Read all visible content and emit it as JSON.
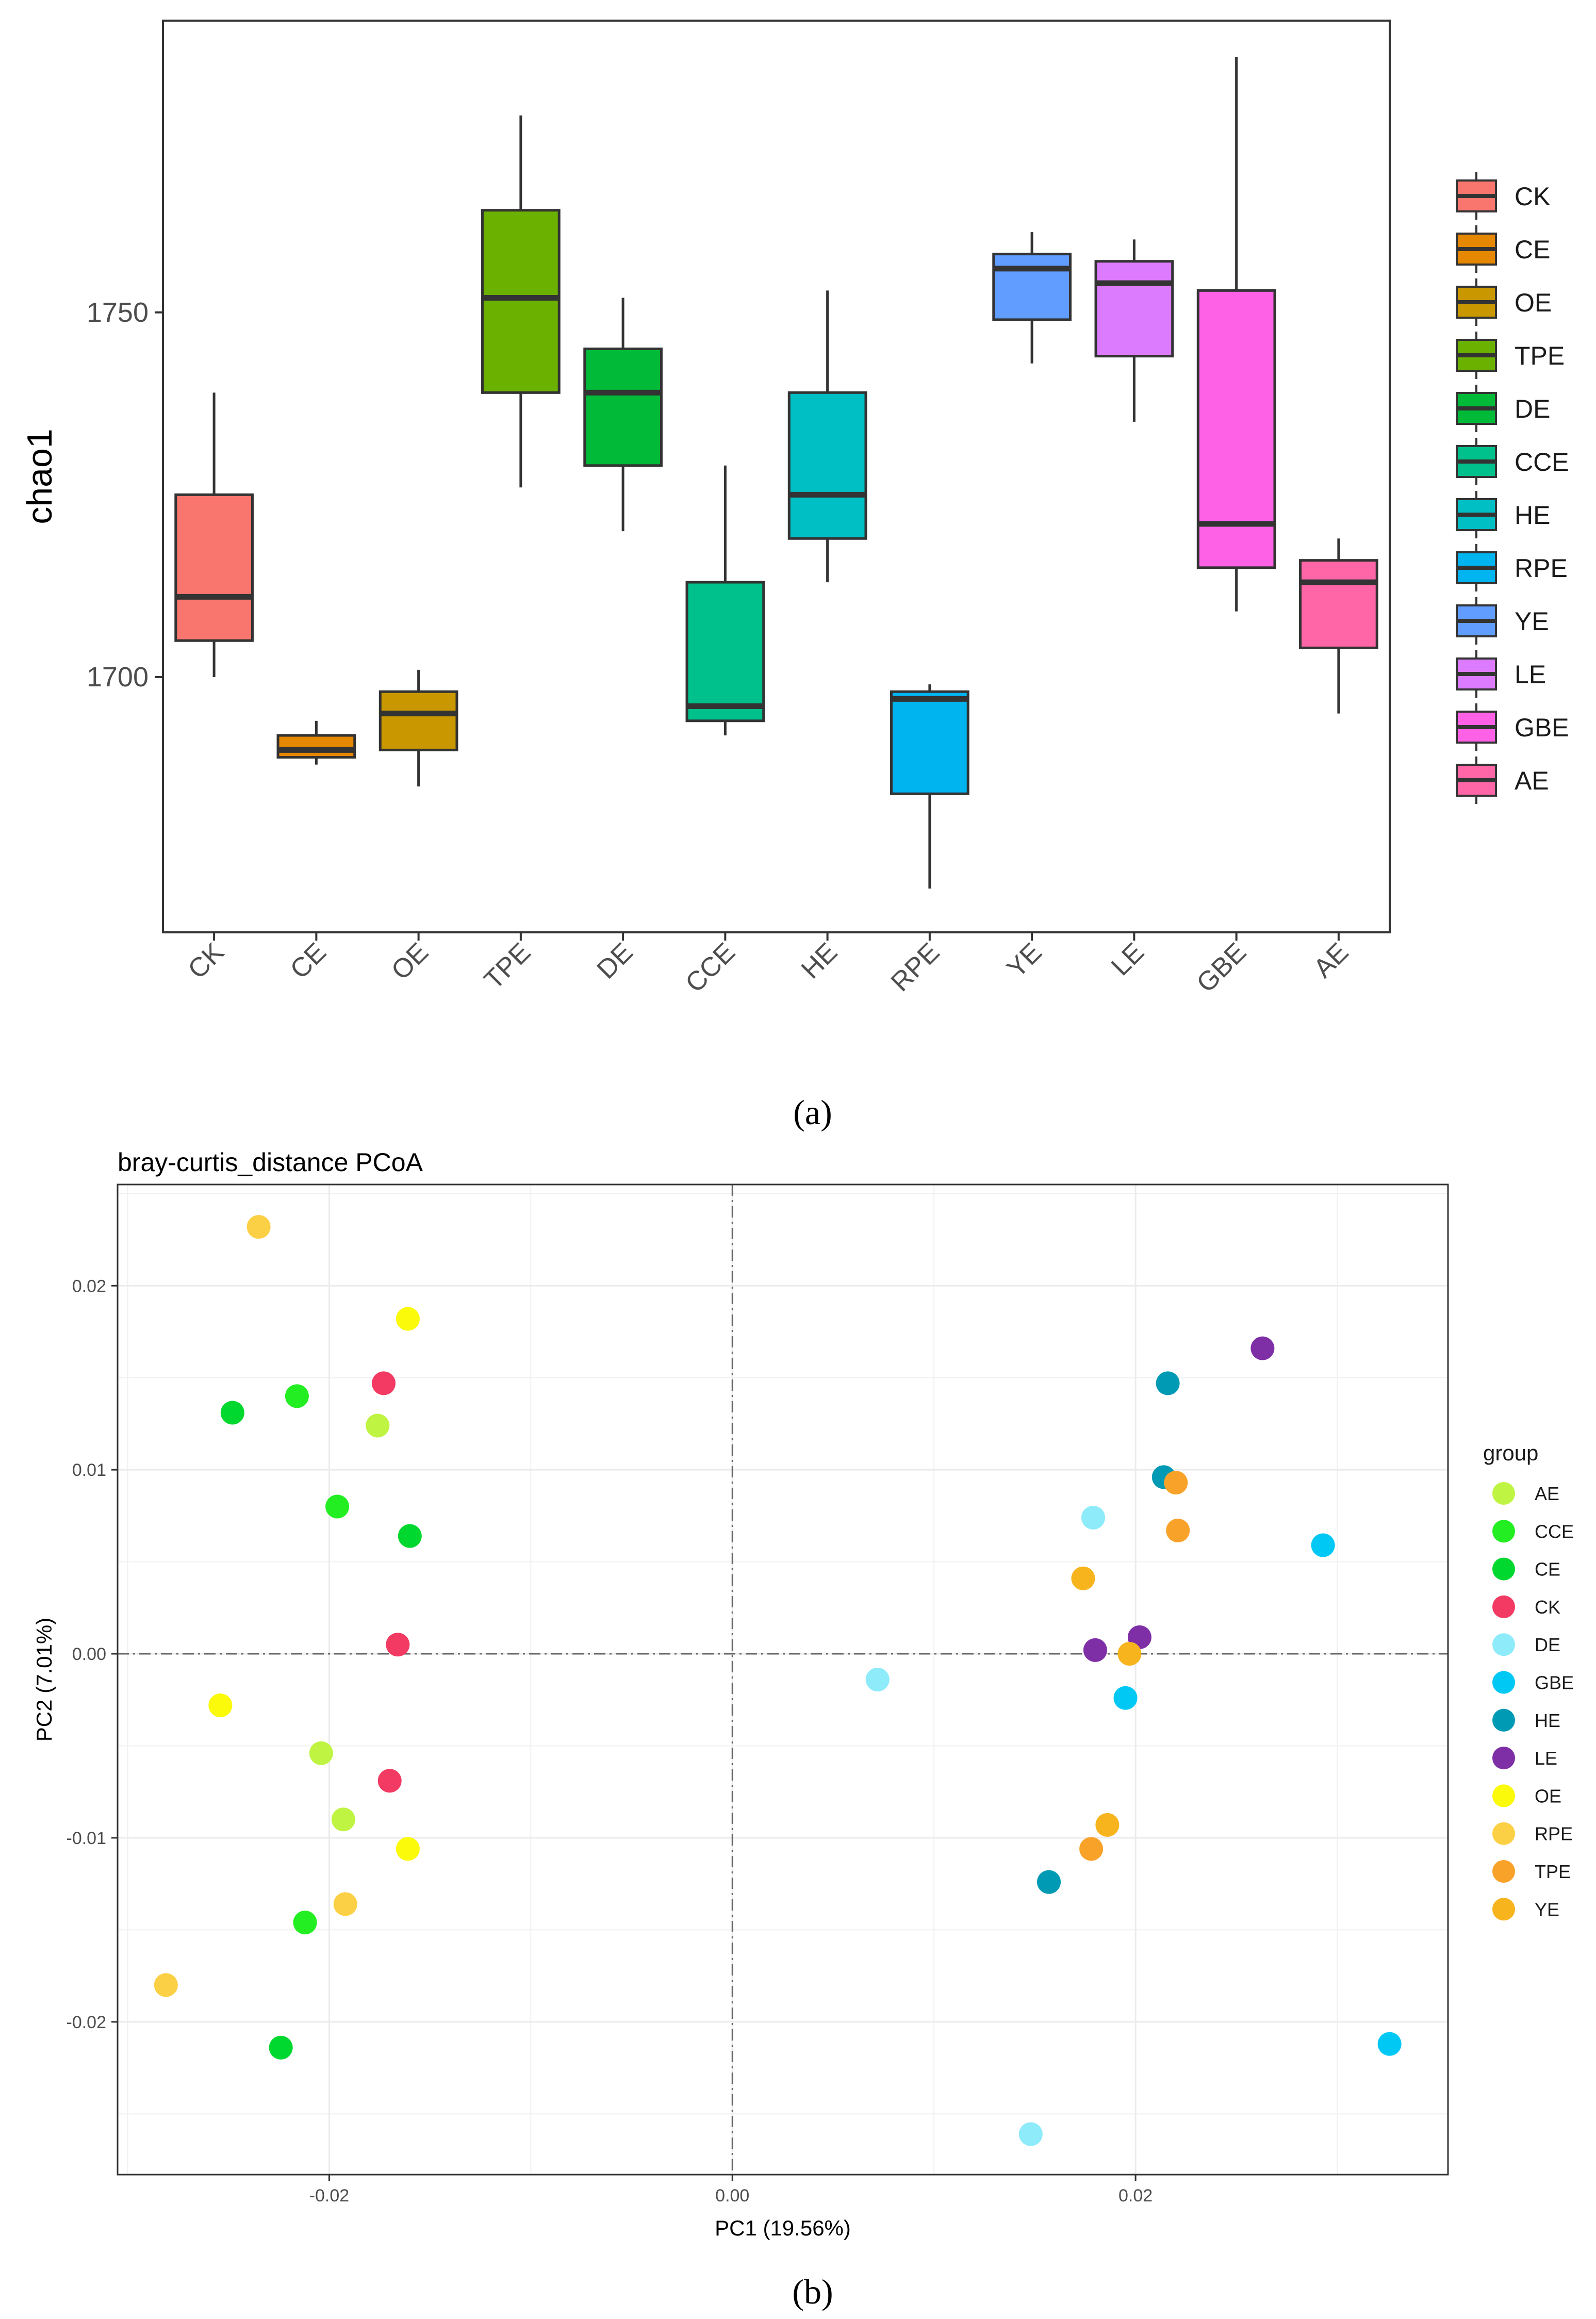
{
  "captions": {
    "a": "(a)",
    "b": "(b)"
  },
  "chart_data": [
    {
      "type": "box",
      "title": "",
      "xlabel": "",
      "ylabel": "chao1",
      "ylim": [
        1665,
        1790
      ],
      "yticks": [
        1700,
        1750
      ],
      "categories": [
        "CK",
        "CE",
        "OE",
        "TPE",
        "DE",
        "CCE",
        "HE",
        "RPE",
        "YE",
        "LE",
        "GBE",
        "AE"
      ],
      "boxes": [
        {
          "group": "CK",
          "color": "#F8766D",
          "whisker_low": 1700,
          "q1": 1705,
          "median": 1711,
          "q3": 1725,
          "whisker_high": 1739
        },
        {
          "group": "CE",
          "color": "#E58700",
          "whisker_low": 1688,
          "q1": 1689,
          "median": 1690,
          "q3": 1692,
          "whisker_high": 1694
        },
        {
          "group": "OE",
          "color": "#C99800",
          "whisker_low": 1685,
          "q1": 1690,
          "median": 1695,
          "q3": 1698,
          "whisker_high": 1701
        },
        {
          "group": "TPE",
          "color": "#6BB100",
          "whisker_low": 1726,
          "q1": 1739,
          "median": 1752,
          "q3": 1764,
          "whisker_high": 1777
        },
        {
          "group": "DE",
          "color": "#00BA38",
          "whisker_low": 1720,
          "q1": 1729,
          "median": 1739,
          "q3": 1745,
          "whisker_high": 1752
        },
        {
          "group": "CCE",
          "color": "#00C08B",
          "whisker_low": 1692,
          "q1": 1694,
          "median": 1696,
          "q3": 1713,
          "whisker_high": 1729
        },
        {
          "group": "HE",
          "color": "#00BFC4",
          "whisker_low": 1713,
          "q1": 1719,
          "median": 1725,
          "q3": 1739,
          "whisker_high": 1753
        },
        {
          "group": "RPE",
          "color": "#00B4F0",
          "whisker_low": 1671,
          "q1": 1684,
          "median": 1697,
          "q3": 1698,
          "whisker_high": 1699
        },
        {
          "group": "YE",
          "color": "#619CFF",
          "whisker_low": 1743,
          "q1": 1749,
          "median": 1756,
          "q3": 1758,
          "whisker_high": 1761
        },
        {
          "group": "LE",
          "color": "#DD7BFF",
          "whisker_low": 1735,
          "q1": 1744,
          "median": 1754,
          "q3": 1757,
          "whisker_high": 1760
        },
        {
          "group": "GBE",
          "color": "#FF61E6",
          "whisker_low": 1709,
          "q1": 1715,
          "median": 1721,
          "q3": 1753,
          "whisker_high": 1785
        },
        {
          "group": "AE",
          "color": "#FF66A8",
          "whisker_low": 1695,
          "q1": 1704,
          "median": 1713,
          "q3": 1716,
          "whisker_high": 1719
        }
      ],
      "legend": [
        "CK",
        "CE",
        "OE",
        "TPE",
        "DE",
        "CCE",
        "HE",
        "RPE",
        "YE",
        "LE",
        "GBE",
        "AE"
      ]
    },
    {
      "type": "scatter",
      "title": "bray-curtis_distance PCoA",
      "xlabel": "PC1 (19.56%)",
      "ylabel": "PC2 (7.01%)",
      "xlim": [
        -0.0305,
        0.0355
      ],
      "ylim": [
        -0.0283,
        0.0255
      ],
      "xticks": [
        -0.02,
        0.0,
        0.02
      ],
      "xtick_labels": [
        "-0.02",
        "0.00",
        "0.02"
      ],
      "yticks": [
        -0.02,
        -0.01,
        0.0,
        0.01,
        0.02
      ],
      "ytick_labels": [
        "-0.02",
        "-0.01",
        "0.00",
        "0.01",
        "0.02"
      ],
      "legend_title": "group",
      "groups": [
        {
          "name": "AE",
          "color": "#C0F442"
        },
        {
          "name": "CCE",
          "color": "#22EE22"
        },
        {
          "name": "CE",
          "color": "#00D830"
        },
        {
          "name": "CK",
          "color": "#F23A62"
        },
        {
          "name": "DE",
          "color": "#8DEBFA"
        },
        {
          "name": "GBE",
          "color": "#00C8F4"
        },
        {
          "name": "HE",
          "color": "#009AB4"
        },
        {
          "name": "LE",
          "color": "#7E2FA6"
        },
        {
          "name": "OE",
          "color": "#FAFA0A"
        },
        {
          "name": "RPE",
          "color": "#FCD045"
        },
        {
          "name": "TPE",
          "color": "#F9A22A"
        },
        {
          "name": "YE",
          "color": "#F8B41D"
        }
      ],
      "points": [
        {
          "group": "RPE",
          "x": -0.0235,
          "y": 0.0232
        },
        {
          "group": "RPE",
          "x": -0.0281,
          "y": -0.018
        },
        {
          "group": "RPE",
          "x": -0.0192,
          "y": -0.0136
        },
        {
          "group": "OE",
          "x": -0.0161,
          "y": 0.0182
        },
        {
          "group": "OE",
          "x": -0.0254,
          "y": -0.0028
        },
        {
          "group": "OE",
          "x": -0.0161,
          "y": -0.0106
        },
        {
          "group": "CE",
          "x": -0.0248,
          "y": 0.0131
        },
        {
          "group": "CE",
          "x": -0.016,
          "y": 0.0064
        },
        {
          "group": "CE",
          "x": -0.0224,
          "y": -0.0214
        },
        {
          "group": "CCE",
          "x": -0.0216,
          "y": 0.014
        },
        {
          "group": "CCE",
          "x": -0.0196,
          "y": 0.008
        },
        {
          "group": "CCE",
          "x": -0.0212,
          "y": -0.0146
        },
        {
          "group": "CK",
          "x": -0.0173,
          "y": 0.0147
        },
        {
          "group": "CK",
          "x": -0.0166,
          "y": 0.0005
        },
        {
          "group": "CK",
          "x": -0.017,
          "y": -0.0069
        },
        {
          "group": "AE",
          "x": -0.0176,
          "y": 0.0124
        },
        {
          "group": "AE",
          "x": -0.0204,
          "y": -0.0054
        },
        {
          "group": "AE",
          "x": -0.0193,
          "y": -0.009
        },
        {
          "group": "DE",
          "x": 0.0072,
          "y": -0.0014
        },
        {
          "group": "DE",
          "x": 0.0179,
          "y": 0.0074
        },
        {
          "group": "DE",
          "x": 0.0148,
          "y": -0.0261
        },
        {
          "group": "GBE",
          "x": 0.0293,
          "y": 0.0059
        },
        {
          "group": "GBE",
          "x": 0.0195,
          "y": -0.0024
        },
        {
          "group": "GBE",
          "x": 0.0326,
          "y": -0.0212
        },
        {
          "group": "HE",
          "x": 0.0216,
          "y": 0.0147
        },
        {
          "group": "HE",
          "x": 0.0214,
          "y": 0.0096
        },
        {
          "group": "HE",
          "x": 0.0157,
          "y": -0.0124
        },
        {
          "group": "LE",
          "x": 0.0263,
          "y": 0.0166
        },
        {
          "group": "LE",
          "x": 0.018,
          "y": 0.0002
        },
        {
          "group": "LE",
          "x": 0.0202,
          "y": 0.0009
        },
        {
          "group": "TPE",
          "x": 0.022,
          "y": 0.0093
        },
        {
          "group": "TPE",
          "x": 0.0221,
          "y": 0.0067
        },
        {
          "group": "TPE",
          "x": 0.0178,
          "y": -0.0106
        },
        {
          "group": "YE",
          "x": 0.0174,
          "y": 0.0041
        },
        {
          "group": "YE",
          "x": 0.0197,
          "y": 0.0
        },
        {
          "group": "YE",
          "x": 0.0186,
          "y": -0.0093
        }
      ]
    }
  ]
}
